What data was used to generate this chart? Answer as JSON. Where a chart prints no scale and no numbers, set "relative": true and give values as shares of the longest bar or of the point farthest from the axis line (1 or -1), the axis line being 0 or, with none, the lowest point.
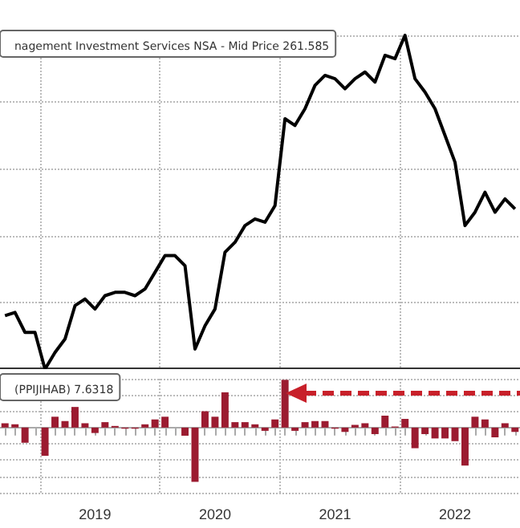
{
  "chart_data": [
    {
      "type": "line",
      "relative": true,
      "grid": true,
      "legend": "top left",
      "tick_labels": false,
      "line_style": "solid",
      "categories": [
        null,
        null,
        null,
        null,
        null,
        null,
        null,
        null,
        null,
        "2019",
        null,
        null,
        null,
        null,
        null,
        null,
        null,
        null,
        null,
        null,
        null,
        "2020",
        null,
        null,
        null,
        null,
        null,
        null,
        null,
        null,
        null,
        null,
        null,
        "2021",
        null,
        null,
        null,
        null,
        null,
        null,
        null,
        null,
        null,
        null,
        null,
        "2022",
        null,
        null,
        null,
        null,
        null,
        null
      ],
      "series": [
        {
          "name": "nagement Investment Services NSA - Mid Price 261.585",
          "color": "#000000",
          "values": [
            0.16,
            0.17,
            0.11,
            0.11,
            0,
            0.05,
            0.09,
            0.19,
            0.21,
            0.18,
            0.22,
            0.23,
            0.23,
            0.22,
            0.24,
            0.29,
            0.34,
            0.34,
            0.31,
            0.06,
            0.13,
            0.18,
            0.35,
            0.38,
            0.43,
            0.45,
            0.44,
            0.49,
            0.75,
            0.73,
            0.78,
            0.85,
            0.88,
            0.87,
            0.84,
            0.87,
            0.89,
            0.86,
            0.94,
            0.93,
            1,
            0.87,
            0.83,
            0.78,
            0.7,
            0.62,
            0.43,
            0.47,
            0.53,
            0.47,
            0.51,
            0.48
          ]
        }
      ]
    },
    {
      "type": "bar",
      "relative": true,
      "grid": true,
      "legend": "top left",
      "categories": [
        null,
        null,
        null,
        null,
        null,
        null,
        null,
        null,
        null,
        "2019",
        null,
        null,
        null,
        null,
        null,
        null,
        null,
        null,
        null,
        null,
        null,
        "2020",
        null,
        null,
        null,
        null,
        null,
        null,
        null,
        null,
        null,
        null,
        null,
        "2021",
        null,
        null,
        null,
        null,
        null,
        null,
        null,
        null,
        null,
        null,
        null,
        "2022",
        null,
        null,
        null,
        null,
        null,
        null
      ],
      "series": [
        {
          "name": "(PPIJIHAB) 7.6318",
          "color": "#9b1b30",
          "values": [
            0.08,
            0.06,
            -0.28,
            0,
            -0.52,
            0.2,
            0.12,
            0.38,
            0.08,
            -0.1,
            0.1,
            0.03,
            -0.02,
            -0.02,
            0.06,
            0.15,
            0.2,
            0,
            -0.15,
            -1,
            0.3,
            0.2,
            0.65,
            0.1,
            0.1,
            0.06,
            -0.06,
            0.15,
            0.88,
            -0.06,
            0.1,
            0.12,
            0.12,
            -0.02,
            -0.08,
            0.05,
            0.08,
            -0.12,
            0.22,
            0.02,
            0.16,
            -0.38,
            -0.12,
            -0.2,
            -0.2,
            -0.25,
            -0.7,
            0.2,
            0.15,
            -0.18,
            0.08,
            -0.08
          ]
        }
      ]
    }
  ]
}
